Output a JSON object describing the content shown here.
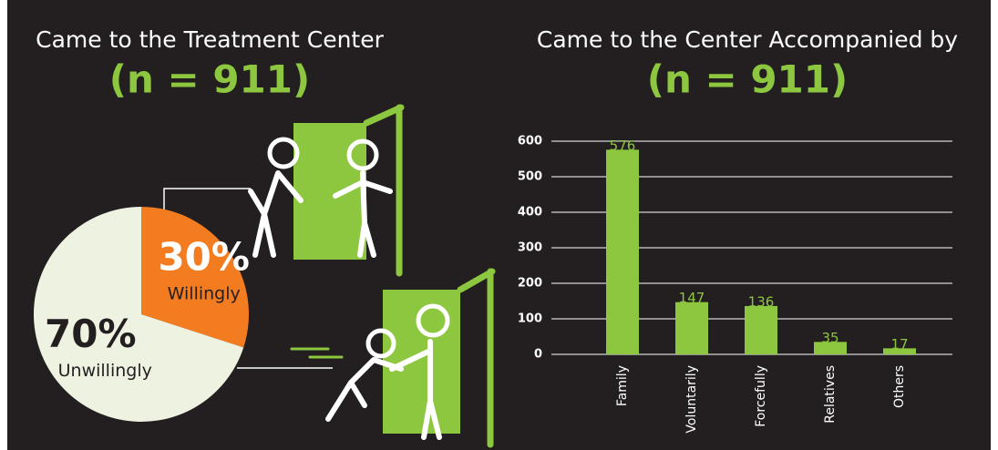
{
  "chart_data": [
    {
      "type": "pie",
      "title": "Came to the Treatment Center",
      "subtitle": "(n = 911)",
      "categories": [
        "Willingly",
        "Unwillingly"
      ],
      "values": [
        30,
        70
      ],
      "value_labels": [
        "30%",
        "70%"
      ],
      "colors": [
        "#f47c20",
        "#eef2e1"
      ]
    },
    {
      "type": "bar",
      "title": "Came to the Center Accompanied by",
      "subtitle": "(n = 911)",
      "categories": [
        "Family",
        "Voluntarily",
        "Forcefully",
        "Relatives",
        "Others"
      ],
      "values": [
        576,
        147,
        136,
        35,
        17
      ],
      "color": "#8dc63f",
      "ylim": [
        0,
        600
      ],
      "yticks": [
        0,
        100,
        200,
        300,
        400,
        500,
        600
      ],
      "grid": true
    }
  ]
}
